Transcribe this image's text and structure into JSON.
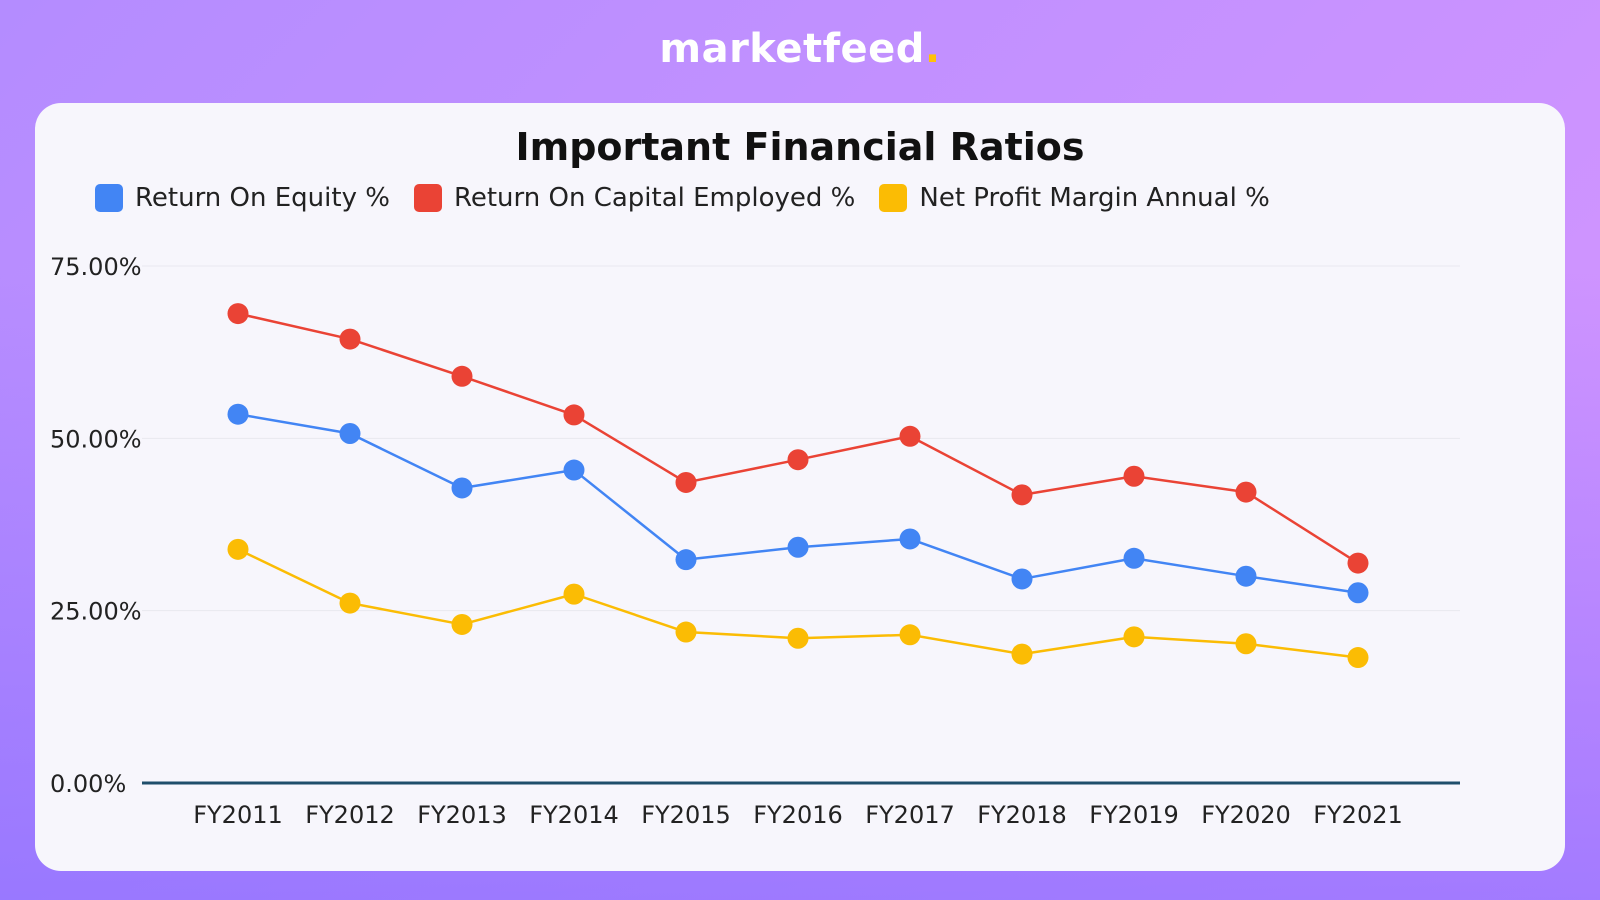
{
  "brand": {
    "name": "marketfeed",
    "dot": "."
  },
  "colors": {
    "roe": "#4285f4",
    "roce": "#ea4335",
    "npm": "#fbbc04",
    "baseline": "#1f4e6b",
    "grid": "#e9e8ef"
  },
  "chart_data": {
    "type": "line",
    "title": "Important Financial Ratios",
    "categories": [
      "FY2011",
      "FY2012",
      "FY2013",
      "FY2014",
      "FY2015",
      "FY2016",
      "FY2017",
      "FY2018",
      "FY2019",
      "FY2020",
      "FY2021"
    ],
    "series": [
      {
        "name": "Return On Equity %",
        "color": "#4285f4",
        "values": [
          53.5,
          50.7,
          42.8,
          45.4,
          32.4,
          34.2,
          35.4,
          29.6,
          32.6,
          30.0,
          27.6
        ]
      },
      {
        "name": "Return On Capital Employed %",
        "color": "#ea4335",
        "values": [
          68.1,
          64.4,
          59.0,
          53.4,
          43.6,
          46.9,
          50.3,
          41.8,
          44.5,
          42.2,
          31.9
        ]
      },
      {
        "name": "Net Profit Margin Annual %",
        "color": "#fbbc04",
        "values": [
          33.9,
          26.1,
          23.0,
          27.4,
          21.9,
          21.0,
          21.5,
          18.7,
          21.2,
          20.2,
          18.2
        ]
      }
    ],
    "yticks": [
      "0.00%",
      "25.00%",
      "50.00%",
      "75.00%"
    ],
    "ytick_values": [
      0,
      25,
      50,
      75
    ],
    "ylim": [
      0,
      75
    ],
    "grid": true,
    "legend_position": "top-left"
  }
}
